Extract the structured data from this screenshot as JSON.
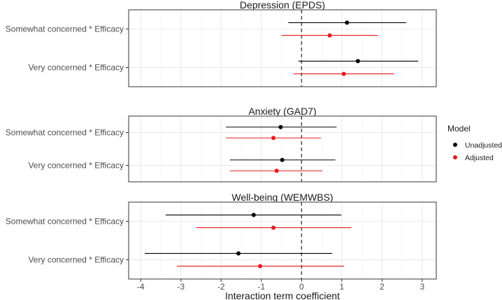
{
  "chart_data": {
    "type": "forest",
    "xlabel": "Interaction term coefficient",
    "xlim": [
      -4.3,
      3.35
    ],
    "xticks": [
      -4,
      -3,
      -2,
      -1,
      0,
      1,
      2,
      3
    ],
    "xtick_labels": [
      "-4",
      "-3",
      "-2",
      "-1",
      "0",
      "1",
      "2",
      "3"
    ],
    "reference_line": 0,
    "grid": true,
    "legend": {
      "title": "Model",
      "position": "right",
      "entries": [
        {
          "name": "Unadjusted",
          "color": "#000000"
        },
        {
          "name": "Adjusted",
          "color": "#e41a1c"
        }
      ]
    },
    "panels": [
      {
        "title": "Depression (EPDS)",
        "terms": [
          {
            "label": "Somewhat concerned * Efficacy",
            "unadjusted": {
              "estimate": 1.13,
              "lower": -0.33,
              "upper": 2.6
            },
            "adjusted": {
              "estimate": 0.7,
              "lower": -0.5,
              "upper": 1.9
            }
          },
          {
            "label": "Very concerned * Efficacy",
            "unadjusted": {
              "estimate": 1.4,
              "lower": -0.08,
              "upper": 2.9
            },
            "adjusted": {
              "estimate": 1.05,
              "lower": -0.2,
              "upper": 2.3
            }
          }
        ]
      },
      {
        "title": "Anxiety (GAD7)",
        "terms": [
          {
            "label": "Somewhat concerned * Efficacy",
            "unadjusted": {
              "estimate": -0.52,
              "lower": -1.88,
              "upper": 0.87
            },
            "adjusted": {
              "estimate": -0.7,
              "lower": -1.88,
              "upper": 0.48
            }
          },
          {
            "label": "Very concerned * Efficacy",
            "unadjusted": {
              "estimate": -0.48,
              "lower": -1.78,
              "upper": 0.84
            },
            "adjusted": {
              "estimate": -0.62,
              "lower": -1.78,
              "upper": 0.52
            }
          }
        ]
      },
      {
        "title": "Well-being (WEMWBS)",
        "terms": [
          {
            "label": "Somewhat concerned * Efficacy",
            "unadjusted": {
              "estimate": -1.19,
              "lower": -3.38,
              "upper": 0.99
            },
            "adjusted": {
              "estimate": -0.7,
              "lower": -2.62,
              "upper": 1.24
            }
          },
          {
            "label": "Very concerned * Efficacy",
            "unadjusted": {
              "estimate": -1.57,
              "lower": -3.9,
              "upper": 0.76
            },
            "adjusted": {
              "estimate": -1.03,
              "lower": -3.1,
              "upper": 1.06
            }
          }
        ]
      }
    ]
  }
}
